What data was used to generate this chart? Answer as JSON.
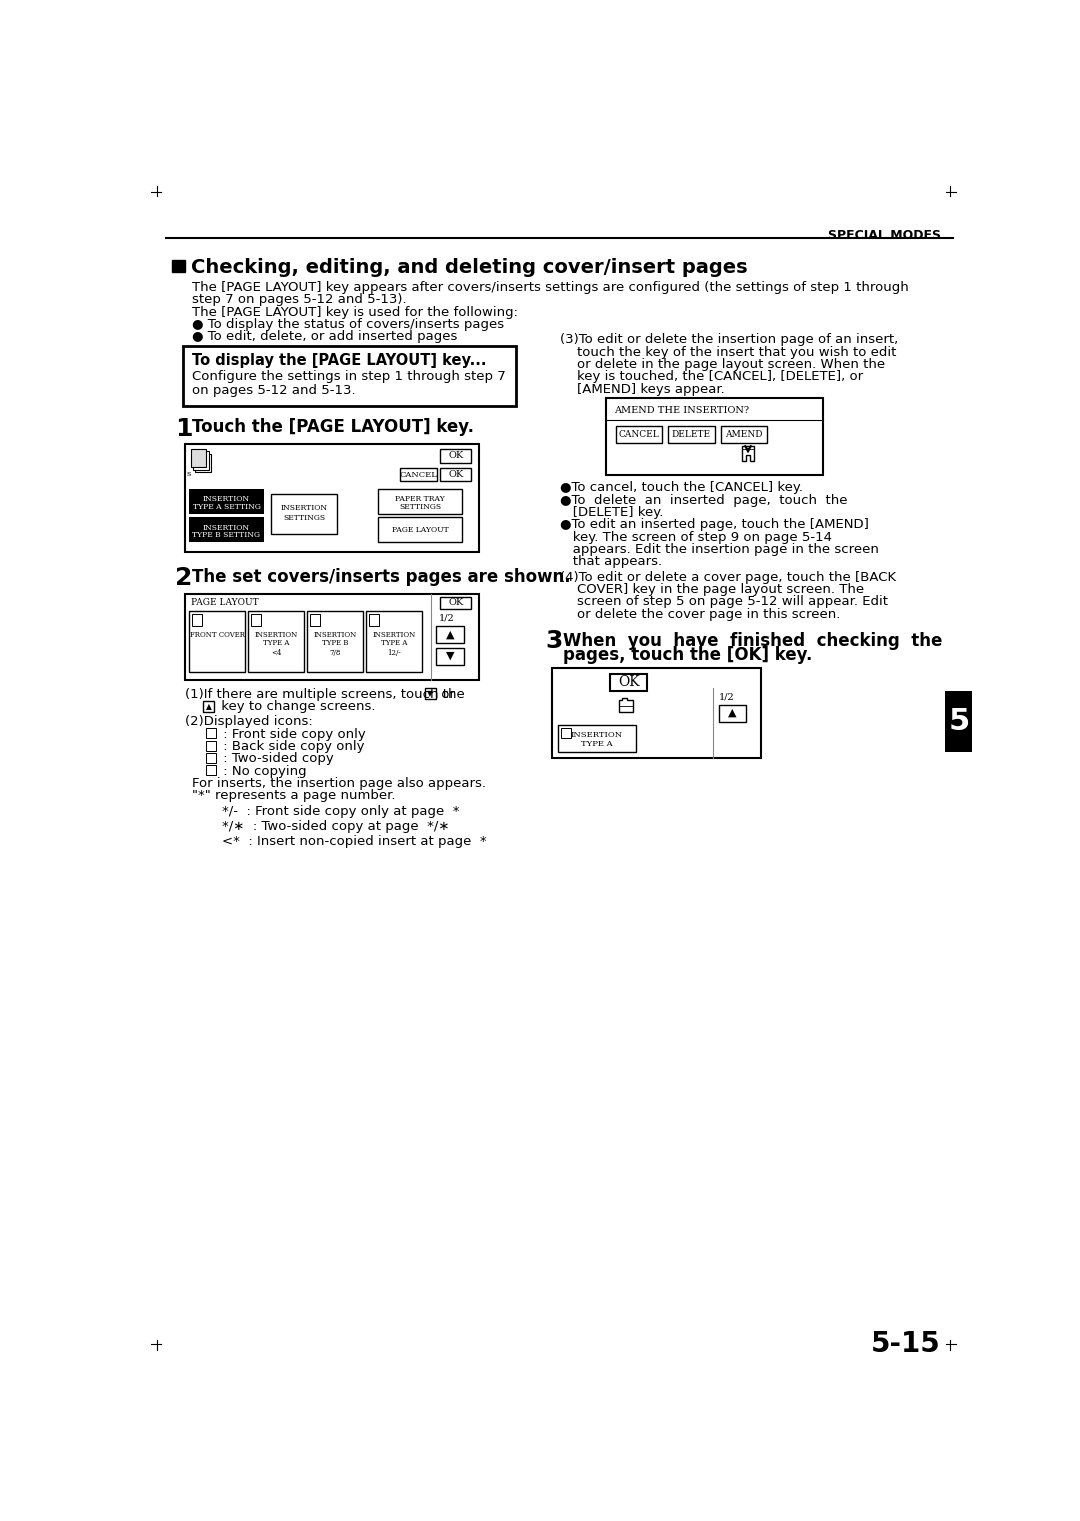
{
  "page_title": "SPECIAL MODES",
  "section_title": "Checking, editing, and deleting cover/insert pages",
  "bg_color": "#ffffff",
  "text_color": "#000000",
  "page_number": "5-15",
  "tab_label": "5",
  "intro_line1": "The [PAGE LAYOUT] key appears after covers/inserts settings are configured (the settings of step 1 through",
  "intro_line2": "step 7 on pages 5-12 and 5-13).",
  "intro_line3": "The [PAGE LAYOUT] key is used for the following:",
  "bullet1": "● To display the status of covers/inserts pages",
  "bullet2": "● To edit, delete, or add inserted pages",
  "box_title": "To display the [PAGE LAYOUT] key...",
  "box_line1": "Configure the settings in step 1 through step 7",
  "box_line2": "on pages 5-12 and 5-13.",
  "step1_label": "Touch the [PAGE LAYOUT] key.",
  "step2_label": "The set covers/inserts pages are shown.",
  "step3_line1": "When  you  have  finished  checking  the",
  "step3_line2": "pages, touch the [OK] key.",
  "p3_lines": [
    "(3)To edit or delete the insertion page of an insert,",
    "    touch the key of the insert that you wish to edit",
    "    or delete in the page layout screen. When the",
    "    key is touched, the [CANCEL], [DELETE], or",
    "    [AMEND] keys appear."
  ],
  "bullets_right": [
    "●To cancel, touch the [CANCEL] key.",
    "●To  delete  an  inserted  page,  touch  the",
    "   [DELETE] key.",
    "●To edit an inserted page, touch the [AMEND]",
    "   key. The screen of step 9 on page 5-14",
    "   appears. Edit the insertion page in the screen",
    "   that appears."
  ],
  "p4_lines": [
    "(4)To edit or delete a cover page, touch the [BACK",
    "    COVER] key in the page layout screen. The",
    "    screen of step 5 on page 5-12 will appear. Edit",
    "    or delete the cover page in this screen."
  ],
  "desc1": "(1)If there are multiple screens, touch the",
  "desc1b": " key to change screens.",
  "desc2": "(2)Displayed icons:",
  "icon_descs": [
    " : Front side copy only",
    " : Back side copy only",
    " : Two-sided copy",
    " : No copying"
  ],
  "for_inserts": "For inserts, the insertion page also appears.",
  "star_note": "\"*\" represents a page number.",
  "star_items": [
    "*/-  : Front side copy only at page  *",
    "*/∗  : Two-sided copy at page  */∗",
    "<*  : Insert non-copied insert at page  *"
  ]
}
